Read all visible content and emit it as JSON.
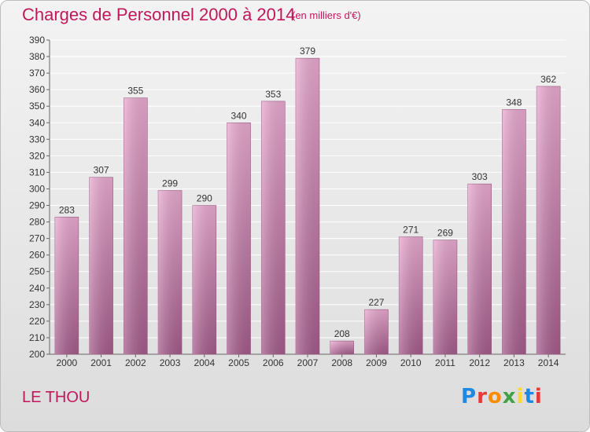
{
  "header": {
    "title": "Charges de Personnel 2000 à 2014",
    "subtitle": "(en milliers d'€)"
  },
  "footer": {
    "commune": "LE THOU",
    "logo_text": "Proxiti"
  },
  "colors": {
    "title": "#c2185b",
    "bar_light": "#e8a9cf",
    "bar_dark": "#a45b8a",
    "grid": "#ffffff"
  },
  "chart_data": {
    "type": "bar",
    "title": "Charges de Personnel 2000 à 2014",
    "subtitle": "(en milliers d'€)",
    "categories": [
      "2000",
      "2001",
      "2002",
      "2003",
      "2004",
      "2005",
      "2006",
      "2007",
      "2008",
      "2009",
      "2010",
      "2011",
      "2012",
      "2013",
      "2014"
    ],
    "values": [
      283,
      307,
      355,
      299,
      290,
      340,
      353,
      379,
      208,
      227,
      271,
      269,
      303,
      348,
      362
    ],
    "ylim": [
      200,
      390
    ],
    "ytick_step": 10,
    "grid": true,
    "legend": "none"
  }
}
